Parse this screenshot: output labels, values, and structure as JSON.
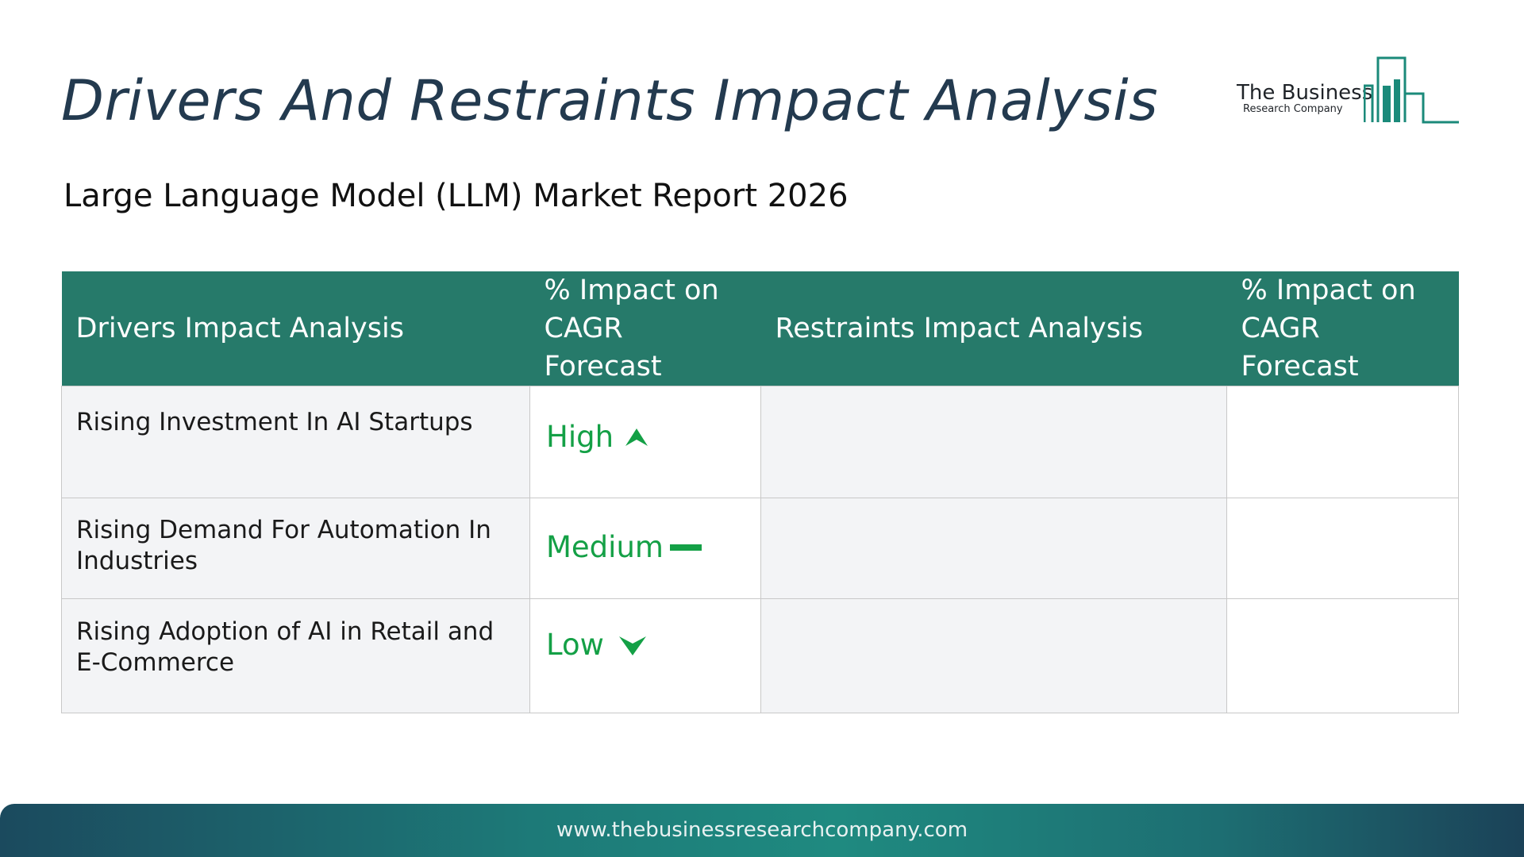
{
  "page": {
    "title": "Drivers And Restraints Impact Analysis",
    "subtitle": "Large Language Model (LLM) Market Report 2026"
  },
  "logo": {
    "line1": "The Business",
    "line2": "Research Company",
    "icon": "building-bars-icon",
    "color": "#1b8a7a"
  },
  "table": {
    "headers": [
      "Drivers Impact Analysis",
      "% Impact on CAGR Forecast",
      "Restraints Impact Analysis",
      "% Impact on CAGR Forecast"
    ],
    "header_color": "#267a6a",
    "rows": [
      {
        "driver": "Rising Investment In AI Startups",
        "impact": "High",
        "impact_icon": "arrow-up-icon",
        "restraint": "",
        "restraint_impact": ""
      },
      {
        "driver": "Rising Demand For Automation In Industries",
        "impact": "Medium",
        "impact_icon": "dash-icon",
        "restraint": "",
        "restraint_impact": ""
      },
      {
        "driver": "Rising Adoption of AI in Retail and E-Commerce",
        "impact": "Low",
        "impact_icon": "arrow-down-icon",
        "restraint": "",
        "restraint_impact": ""
      }
    ],
    "impact_color": "#14a046"
  },
  "footer": {
    "url": "www.thebusinessresearchcompany.com"
  }
}
